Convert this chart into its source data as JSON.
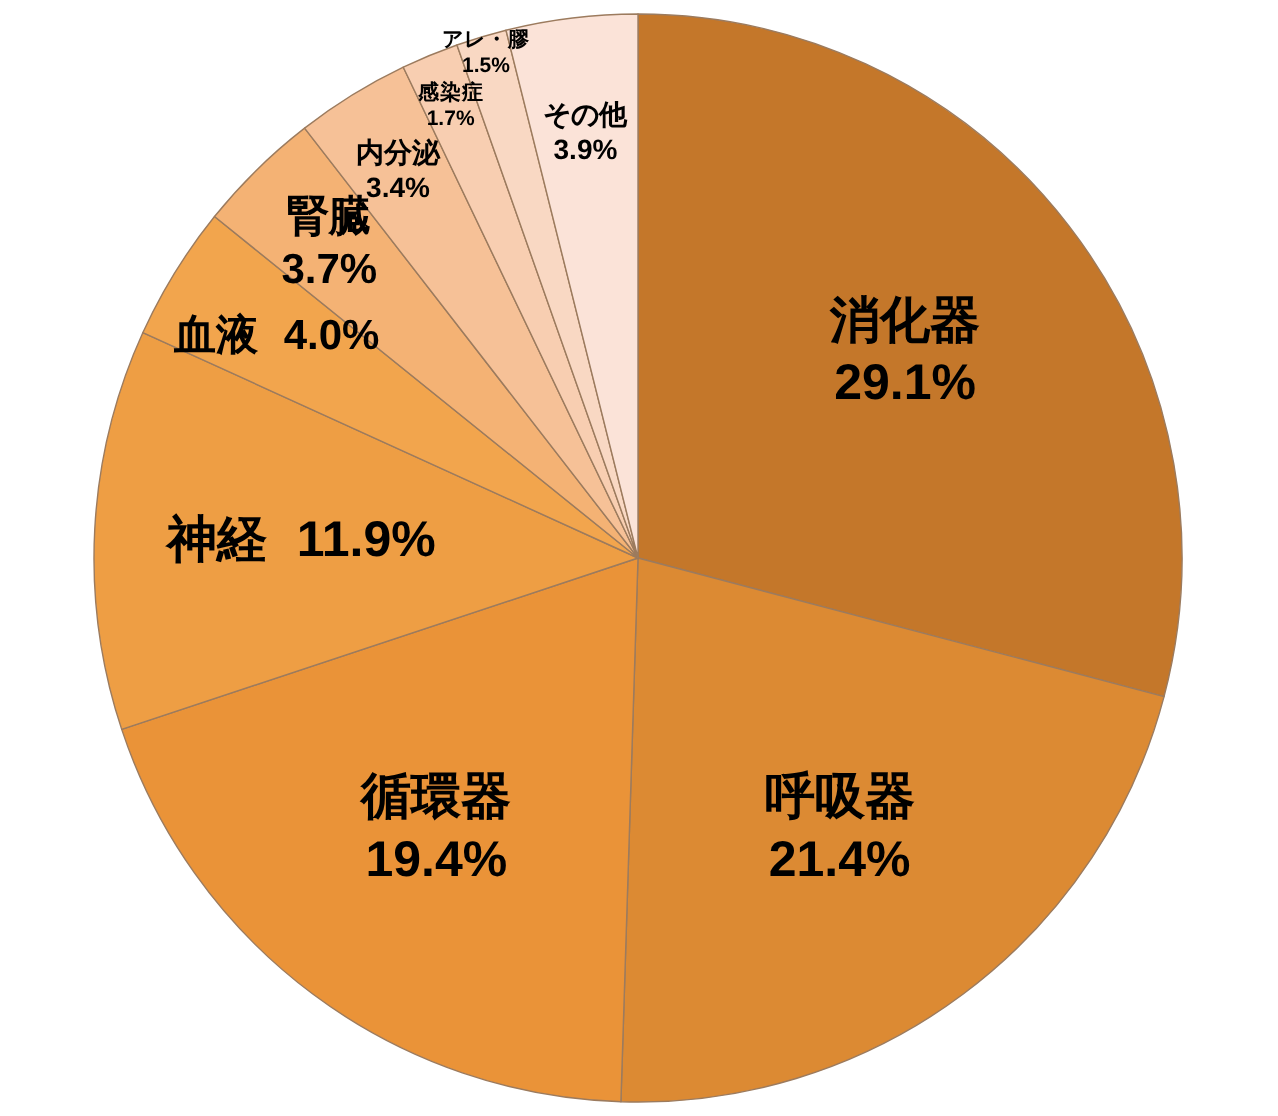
{
  "chart_data": {
    "type": "pie",
    "categories": [
      "消化器",
      "呼吸器",
      "循環器",
      "神経",
      "血液",
      "腎臓",
      "内分泌",
      "感染症",
      "アレ・膠",
      "その他"
    ],
    "values": [
      29.1,
      21.4,
      19.4,
      11.9,
      4.0,
      3.7,
      3.4,
      1.7,
      1.5,
      3.9
    ],
    "colors": [
      "#c4772a",
      "#dc8a33",
      "#ea9338",
      "#ee9e44",
      "#f2a54d",
      "#f4b274",
      "#f6c197",
      "#f8ceb1",
      "#f9d8c3",
      "#fbe3d8"
    ],
    "value_labels": [
      "29.1%",
      "21.4%",
      "19.4%",
      "11.9%",
      "4.0%",
      "3.7%",
      "3.4%",
      "1.7%",
      "1.5%",
      "3.9%"
    ]
  }
}
